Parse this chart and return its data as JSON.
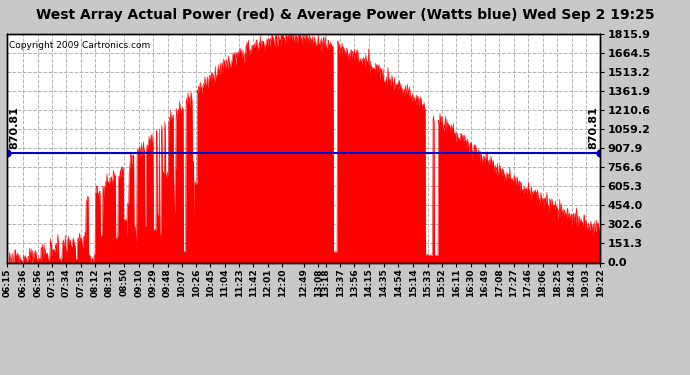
{
  "title": "West Array Actual Power (red) & Average Power (Watts blue) Wed Sep 2 19:25",
  "copyright_text": "Copyright 2009 Cartronics.com",
  "avg_power": 870.81,
  "ymax": 1815.9,
  "yticks": [
    0.0,
    151.3,
    302.6,
    454.0,
    605.3,
    756.6,
    907.9,
    1059.2,
    1210.6,
    1361.9,
    1513.2,
    1664.5,
    1815.9
  ],
  "bg_color": "#c8c8c8",
  "plot_bg": "#ffffff",
  "fill_color": "#ff0000",
  "avg_line_color": "#0000cd",
  "grid_color": "#aaaaaa",
  "title_fontsize": 10,
  "xtick_labels": [
    "06:15",
    "06:36",
    "06:56",
    "07:15",
    "07:34",
    "07:53",
    "08:12",
    "08:31",
    "08:50",
    "09:10",
    "09:29",
    "09:48",
    "10:07",
    "10:26",
    "10:45",
    "11:04",
    "11:23",
    "11:42",
    "12:01",
    "12:20",
    "12:49",
    "13:08",
    "13:18",
    "13:37",
    "13:56",
    "14:15",
    "14:35",
    "14:54",
    "15:14",
    "15:33",
    "15:52",
    "16:11",
    "16:30",
    "16:49",
    "17:08",
    "17:27",
    "17:46",
    "18:06",
    "18:25",
    "18:44",
    "19:03",
    "19:22"
  ]
}
